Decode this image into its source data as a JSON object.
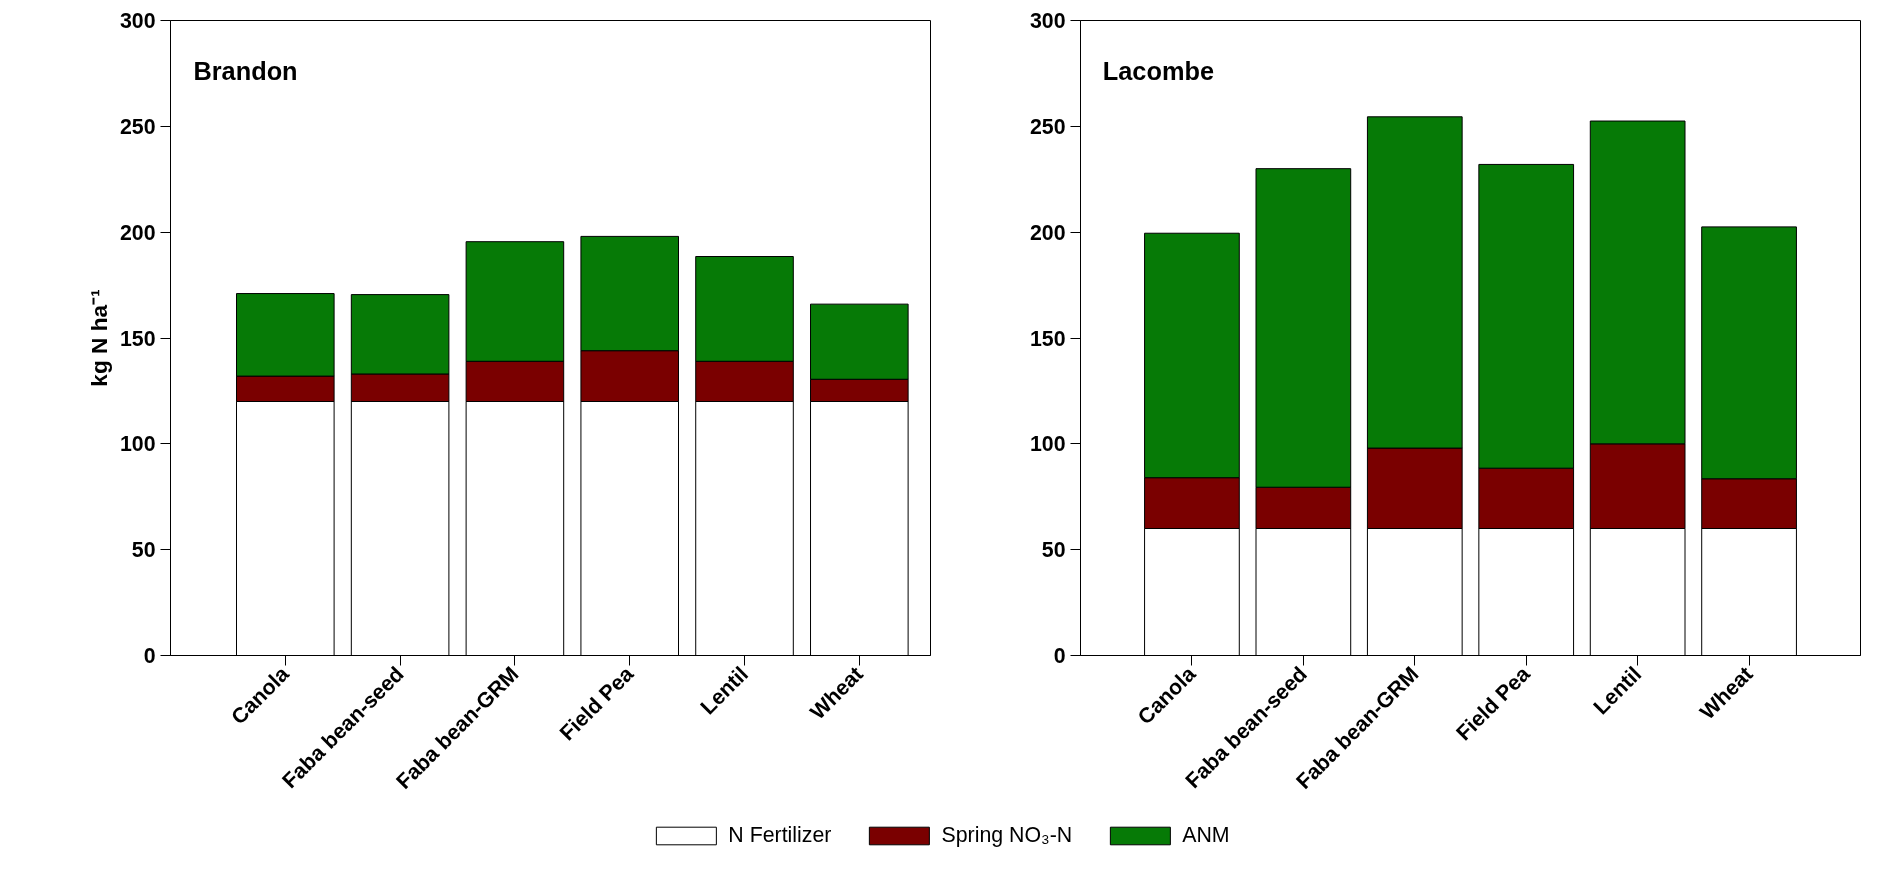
{
  "chart_data": [
    {
      "type": "bar",
      "title": "Brandon",
      "ylabel": "kg N ha⁻¹",
      "stacked": true,
      "legend": "bottom",
      "grid": false,
      "categories": [
        "Canola",
        "Faba bean-seed",
        "Faba bean-GRM",
        "Field Pea",
        "Lentil",
        "Wheat"
      ],
      "ylim": [
        0,
        300
      ],
      "yticks": [
        0,
        50,
        100,
        150,
        200,
        250,
        300
      ],
      "series": [
        {
          "name": "N Fertilizer",
          "color": "#ffffff",
          "values": [
            120,
            120,
            120,
            120,
            120,
            120
          ]
        },
        {
          "name": "Spring NO₃-N",
          "color": "#7a0000",
          "values": [
            12,
            13,
            19,
            24,
            19,
            10.5
          ]
        },
        {
          "name": "ANM",
          "color": "#067a06",
          "values": [
            39,
            37.5,
            56.5,
            54,
            49.5,
            35.5
          ]
        }
      ]
    },
    {
      "type": "bar",
      "title": "Lacombe",
      "stacked": true,
      "grid": false,
      "categories": [
        "Canola",
        "Faba bean-seed",
        "Faba bean-GRM",
        "Field Pea",
        "Lentil",
        "Wheat"
      ],
      "ylim": [
        0,
        300
      ],
      "yticks": [
        0,
        50,
        100,
        150,
        200,
        250,
        300
      ],
      "series": [
        {
          "color": "#ffffff",
          "values": [
            60,
            60,
            60,
            60,
            60,
            60
          ]
        },
        {
          "color": "#7a0000",
          "values": [
            24,
            19.5,
            38,
            28.5,
            40,
            23.5
          ]
        },
        {
          "color": "#067a06",
          "values": [
            115.5,
            150.5,
            156.5,
            143.5,
            152.5,
            119
          ]
        }
      ]
    }
  ]
}
